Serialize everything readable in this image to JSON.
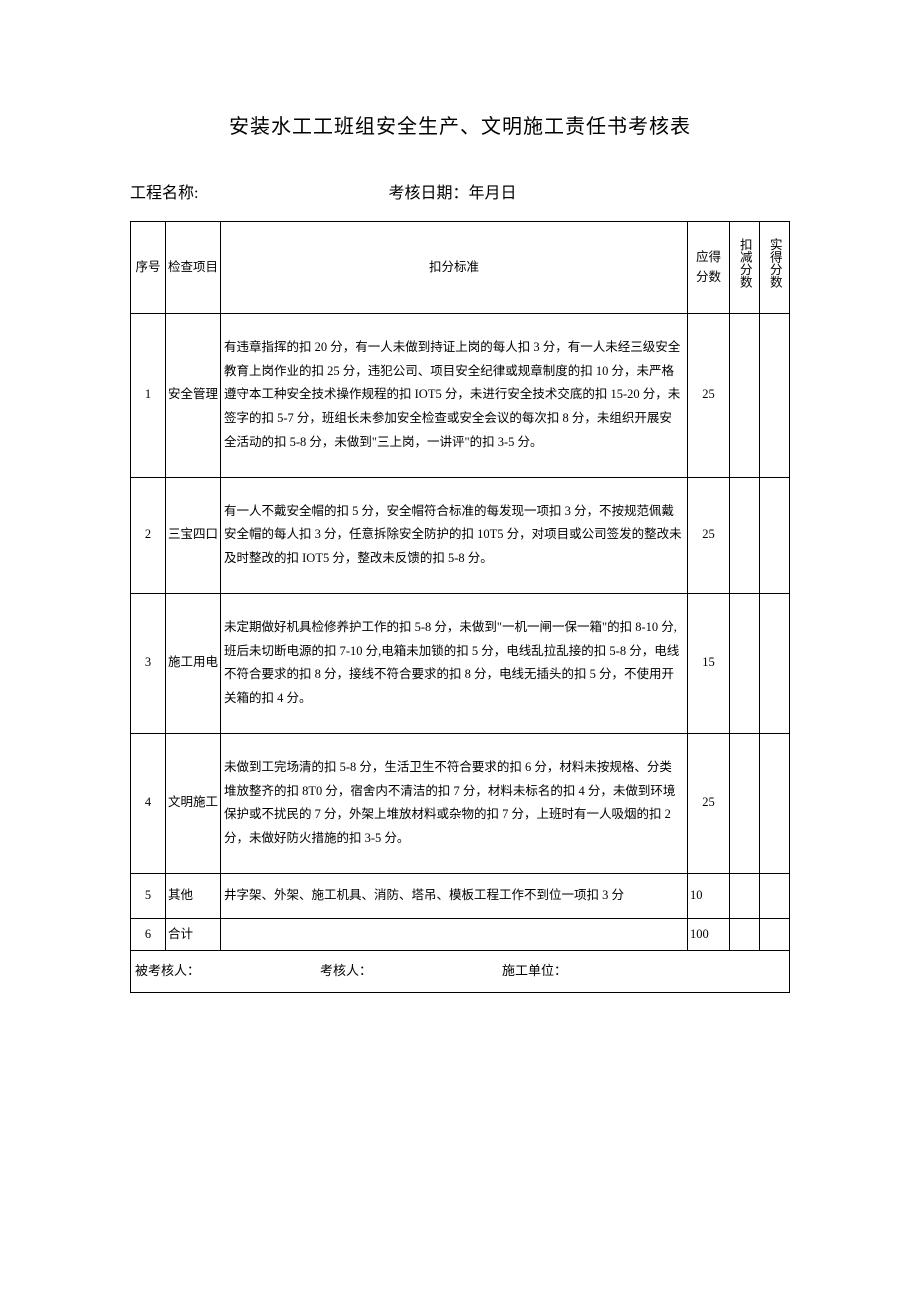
{
  "title": "安装水工工班组安全生产、文明施工责任书考核表",
  "subtitle": {
    "projectLabel": "工程名称:",
    "dateLabel": "考核日期：年月日"
  },
  "headers": {
    "seq": "序号",
    "item": "检查项目",
    "criteria": "扣分标准",
    "score": "应得分数",
    "deduct": "扣减分数",
    "actual": "实得分数"
  },
  "rows": [
    {
      "seq": "1",
      "item": "安全管理",
      "criteria": "有违章指挥的扣 20 分，有一人未做到持证上岗的每人扣 3 分，有一人未经三级安全教育上岗作业的扣 25 分，违犯公司、项目安全纪律或规章制度的扣 10 分，未严格遵守本工种安全技术操作规程的扣 IOT5 分，未进行安全技术交底的扣 15-20 分，未签字的扣 5-7 分，班组长未参加安全检查或安全会议的每次扣 8 分，未组织开展安全活动的扣 5-8 分，未做到\"三上岗，一讲评\"的扣 3-5 分。",
      "score": "25"
    },
    {
      "seq": "2",
      "item": "三宝四口",
      "criteria": "有一人不戴安全帽的扣 5 分，安全帽符合标准的每发现一项扣 3 分，不按规范佩戴安全帽的每人扣 3 分，任意拆除安全防护的扣 10T5 分，对项目或公司签发的整改未及时整改的扣 IOT5 分，整改未反馈的扣 5-8 分。",
      "score": "25"
    },
    {
      "seq": "3",
      "item": "施工用电",
      "criteria": "未定期做好机具检修养护工作的扣 5-8 分，未做到\"一机一闸一保一箱\"的扣 8-10 分,班后未切断电源的扣 7-10 分,电箱未加锁的扣 5 分，电线乱拉乱接的扣 5-8 分，电线不符合要求的扣 8 分，接线不符合要求的扣 8 分，电线无插头的扣 5 分，不使用开关箱的扣 4 分。",
      "score": "15"
    },
    {
      "seq": "4",
      "item": "文明施工",
      "criteria": "未做到工完场清的扣 5-8 分，生活卫生不符合要求的扣 6 分，材料未按规格、分类堆放整齐的扣 8T0 分，宿舍内不清洁的扣 7 分，材料未标名的扣 4 分，未做到环境保护或不扰民的 7 分，外架上堆放材料或杂物的扣 7 分，上班时有一人吸烟的扣 2 分，未做好防火措施的扣 3-5 分。",
      "score": "25"
    },
    {
      "seq": "5",
      "item": "其他",
      "criteria": "井字架、外架、施工机具、消防、塔吊、模板工程工作不到位一项扣 3 分",
      "score": "10"
    },
    {
      "seq": "6",
      "item": "合计",
      "criteria": "",
      "score": "100"
    }
  ],
  "footer": {
    "assessee": "被考核人：",
    "assessor": "考核人：",
    "unit": "施工单位："
  },
  "colors": {
    "text": "#000000",
    "background": "#ffffff",
    "border": "#000000"
  },
  "typography": {
    "titleFontSize": 20,
    "subtitleFontSize": 16,
    "cellFontSize": 12.5,
    "fontFamily": "SimSun"
  },
  "layout": {
    "columnWidths": {
      "seq": 35,
      "item": 55,
      "score": 42,
      "deduct": 30,
      "actual": 30
    }
  }
}
